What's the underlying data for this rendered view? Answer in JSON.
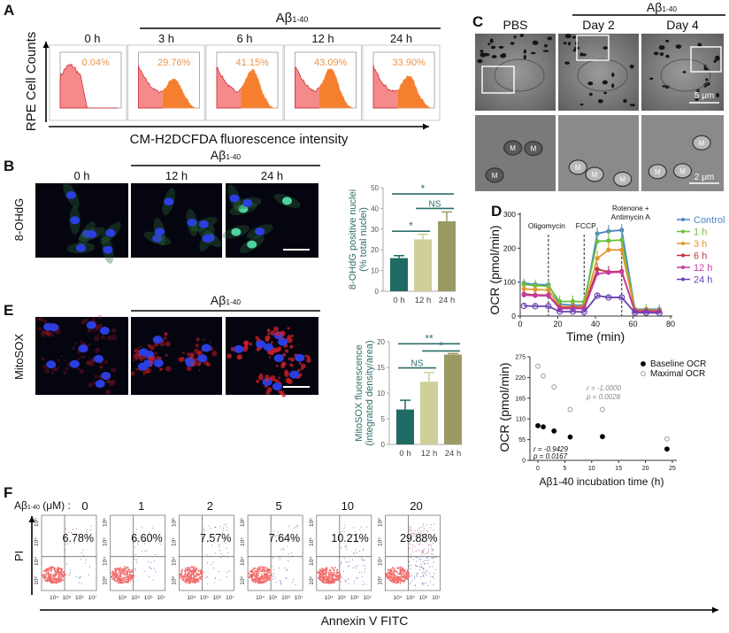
{
  "panels": {
    "A": "A",
    "B": "B",
    "C": "C",
    "D": "D",
    "E": "E",
    "F": "F"
  },
  "treatment_label": "Aβ",
  "treatment_sub": "1-40",
  "panelA": {
    "ylabel": "RPE Cell Counts",
    "xlabel": "CM-H2DCFDA fluorescence intensity",
    "timepoints": [
      "0 h",
      "3 h",
      "6 h",
      "12 h",
      "24 h"
    ],
    "percents": [
      "0.04%",
      "29.76%",
      "41.15%",
      "43.09%",
      "33.90%"
    ],
    "positive_fraction": [
      0.0004,
      0.2976,
      0.4115,
      0.4309,
      0.339
    ]
  },
  "panelB": {
    "row_label": "8-OHdG",
    "image_labels": [
      "0 h",
      "12 h",
      "24 h"
    ]
  },
  "panelC": {
    "columns": [
      "PBS",
      "Day 2",
      "Day 4"
    ],
    "scale_top": "5 μm",
    "scale_bottom": "2 μm",
    "mito_label": "M"
  },
  "panelE": {
    "row_label": "MitoSOX",
    "image_labels": [
      "0 h",
      "12 h",
      "24 h"
    ]
  },
  "panelF": {
    "dose_label_prefix": "Aβ",
    "dose_label_sub": "1-40",
    "dose_label_suffix": " (μM) :",
    "doses": [
      "0",
      "1",
      "2",
      "5",
      "10",
      "20"
    ],
    "percents": [
      "6.78%",
      "6.60%",
      "7.57%",
      "7.64%",
      "10.21%",
      "29.88%"
    ],
    "ylabel": "PI",
    "xlabel": "Annexin V FITC",
    "xticks": [
      "10⁴",
      "10⁵",
      "10⁶",
      "10⁷"
    ],
    "yticks": [
      "10⁶",
      "10⁵",
      "10⁴",
      "10³"
    ]
  },
  "chart_data": [
    {
      "id": "B-bar",
      "type": "bar",
      "categories": [
        "0 h",
        "12 h",
        "24 h"
      ],
      "values": [
        16,
        25,
        33.8
      ],
      "errors": [
        1.2,
        2.5,
        4.5
      ],
      "colors": [
        "#1f6b64",
        "#cfcf99",
        "#9b9a64"
      ],
      "ylabel": "8-OHdG positive nuclei",
      "ylabel2": "(% total nuclei)",
      "ylim": [
        0,
        50
      ],
      "yticks": [
        0,
        10,
        20,
        30,
        40,
        50
      ],
      "significance": [
        {
          "from": 0,
          "to": 2,
          "label": "*",
          "level": 47
        },
        {
          "from": 1,
          "to": 2,
          "label": "NS",
          "level": 40
        },
        {
          "from": 0,
          "to": 1,
          "label": "*",
          "level": 29
        }
      ]
    },
    {
      "id": "E-bar",
      "type": "bar",
      "categories": [
        "0 h",
        "12 h",
        "24 h"
      ],
      "values": [
        6.8,
        12.2,
        17.5
      ],
      "errors": [
        1.8,
        1.8,
        0.2
      ],
      "colors": [
        "#1f6b64",
        "#cfcf99",
        "#9b9a64"
      ],
      "ylabel": "MitoSOX fluorescence",
      "ylabel2": "(integrated density/area)",
      "ylim": [
        0,
        20
      ],
      "yticks": [
        0,
        5,
        10,
        15,
        20
      ],
      "significance": [
        {
          "from": 0,
          "to": 2,
          "label": "**",
          "level": 19.6
        },
        {
          "from": 1,
          "to": 2,
          "label": "*",
          "level": 18.2
        },
        {
          "from": 0,
          "to": 1,
          "label": "NS",
          "level": 14.9
        }
      ]
    },
    {
      "id": "D-line",
      "type": "line",
      "xlabel": "Time (min)",
      "ylabel": "OCR (pmol/min)",
      "xlim": [
        0,
        80
      ],
      "ylim": [
        0,
        300
      ],
      "xticks": [
        0,
        20,
        40,
        60,
        80
      ],
      "yticks": [
        0,
        100,
        200,
        300
      ],
      "annotations": [
        {
          "x": 15,
          "label": "Oligomycin"
        },
        {
          "x": 34,
          "label": "FCCP"
        },
        {
          "x": 54,
          "label": "Rotenone +",
          "label2": "Antimycin A"
        }
      ],
      "x": [
        2,
        8,
        15,
        21,
        28,
        34,
        41,
        47,
        54,
        61,
        67,
        74
      ],
      "series": [
        {
          "name": "Control",
          "color": "#4a86c8",
          "values": [
            97,
            93,
            92,
            35,
            32,
            32,
            243,
            250,
            253,
            20,
            20,
            20
          ],
          "err": 12
        },
        {
          "name": "1 h",
          "color": "#6cbf3c",
          "values": [
            93,
            90,
            88,
            43,
            43,
            42,
            220,
            222,
            224,
            18,
            18,
            17
          ],
          "err": 22
        },
        {
          "name": "3 h",
          "color": "#e0982a",
          "values": [
            80,
            78,
            77,
            28,
            28,
            28,
            170,
            195,
            195,
            17,
            17,
            17
          ],
          "err": 15
        },
        {
          "name": "6 h",
          "color": "#c0353a",
          "values": [
            65,
            62,
            62,
            25,
            25,
            24,
            138,
            130,
            132,
            15,
            15,
            14
          ],
          "err": 12
        },
        {
          "name": "12 h",
          "color": "#c43ca4",
          "values": [
            62,
            60,
            60,
            22,
            22,
            22,
            125,
            128,
            130,
            13,
            13,
            13
          ],
          "err": 10
        },
        {
          "name": "24 h",
          "color": "#6a42b2",
          "values": [
            30,
            29,
            29,
            13,
            13,
            12,
            60,
            55,
            55,
            10,
            10,
            9
          ],
          "err": 12
        }
      ]
    },
    {
      "id": "D-scatter",
      "type": "scatter",
      "xlabel": "Aβ1-40 incubation time (h)",
      "ylabel": "OCR (pmol/min)",
      "xlim": [
        0,
        25
      ],
      "ylim": [
        0,
        275
      ],
      "xticks": [
        0,
        5,
        10,
        15,
        20,
        25
      ],
      "yticks": [
        0,
        55,
        110,
        165,
        220,
        275
      ],
      "x": [
        0,
        1,
        3,
        6,
        12,
        24
      ],
      "series": [
        {
          "name": "Baseline OCR",
          "values": [
            92,
            89,
            78,
            62,
            63,
            30
          ],
          "r": "r = -0.9429",
          "p": "p = 0.0167"
        },
        {
          "name": "Maximal OCR",
          "values": [
            250,
            224,
            195,
            135,
            135,
            57
          ],
          "r": "r = -1.0000",
          "p": "p = 0.0028"
        }
      ]
    }
  ]
}
